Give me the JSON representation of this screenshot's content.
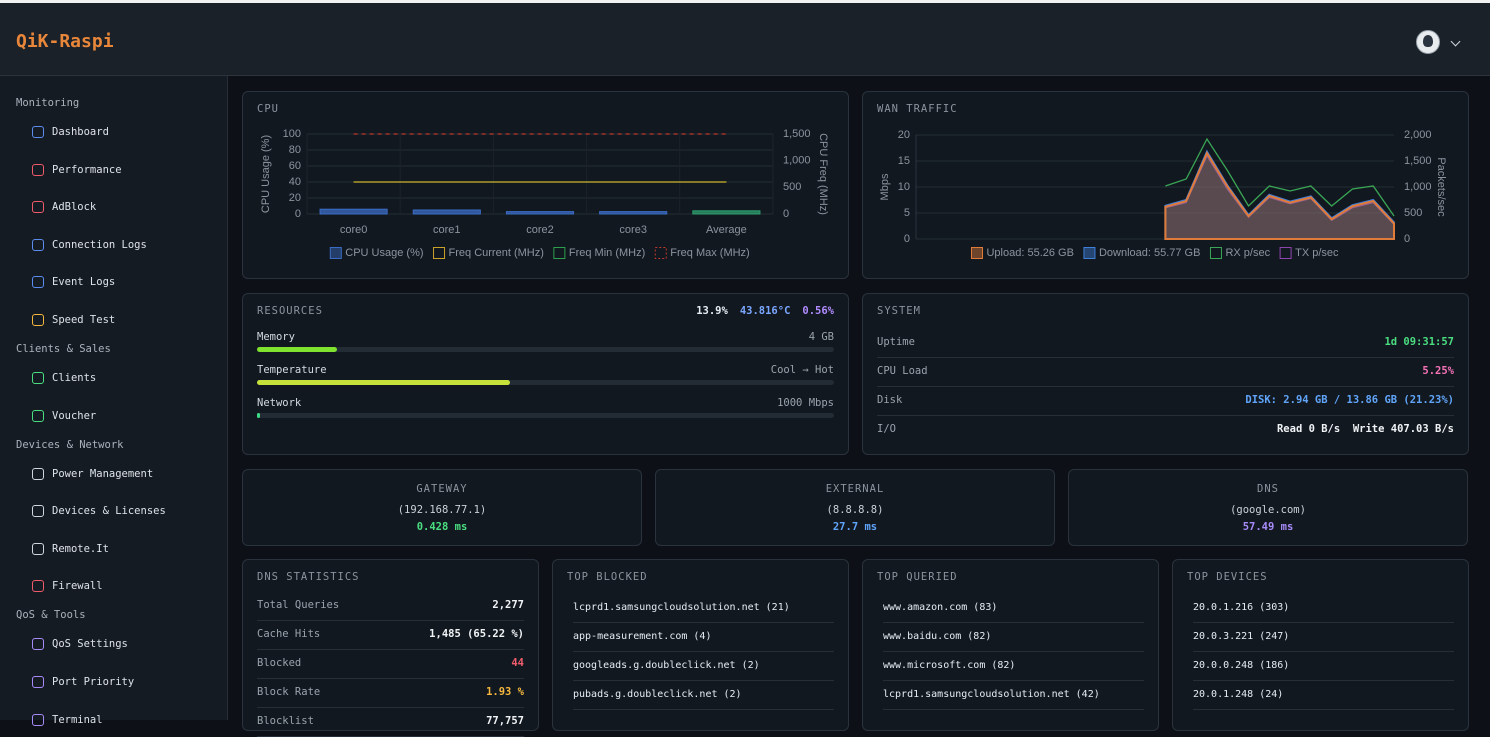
{
  "header": {
    "brand": "QiK-Raspi"
  },
  "sidebar": {
    "sections": [
      {
        "title": "Monitoring",
        "items": [
          "Dashboard",
          "Performance",
          "AdBlock",
          "Connection Logs",
          "Event Logs",
          "Speed Test"
        ]
      },
      {
        "title": "Clients & Sales",
        "items": [
          "Clients",
          "Voucher"
        ]
      },
      {
        "title": "Devices & Network",
        "items": [
          "Power Management",
          "Devices & Licenses",
          "Remote.It",
          "Firewall"
        ]
      },
      {
        "title": "QoS & Tools",
        "items": [
          "QoS Settings",
          "Port Priority",
          "Terminal"
        ]
      }
    ]
  },
  "chart_data": [
    {
      "type": "bar",
      "title": "CPU",
      "ylabel": "CPU Usage (%)",
      "y2label": "CPU Freq (MHz)",
      "categories": [
        "core0",
        "core1",
        "core2",
        "core3",
        "Average"
      ],
      "ylim": [
        0,
        100
      ],
      "yticks": [
        0,
        20,
        40,
        60,
        80,
        100
      ],
      "y2lim": [
        0,
        1500
      ],
      "y2ticks": [
        0,
        500,
        {
          "value": 1000,
          "label": "1,000"
        },
        {
          "value": 1500,
          "label": "1,500"
        }
      ],
      "grid": true,
      "series": [
        {
          "name": "CPU Usage (%)",
          "color": "#3b6cc4",
          "colors": [
            "#3b6cc4",
            "#3b6cc4",
            "#3b6cc4",
            "#3b6cc4",
            "#2e9e6e"
          ],
          "values": [
            6,
            5,
            3,
            3,
            4
          ]
        },
        {
          "name": "Freq Current (MHz)",
          "type": "line",
          "axis": "y2",
          "color": "#c9a227",
          "values": [
            600,
            600,
            600,
            600,
            600
          ]
        },
        {
          "name": "Freq Min (MHz)",
          "type": "line",
          "axis": "y2",
          "color": "#2e9e4e",
          "values": [
            600,
            600,
            600,
            600,
            600
          ]
        },
        {
          "name": "Freq Max (MHz)",
          "type": "line",
          "axis": "y2",
          "color": "#c0392b",
          "dash": true,
          "values": [
            1500,
            1500,
            1500,
            1500,
            1500
          ]
        }
      ]
    },
    {
      "type": "area",
      "title": "WAN TRAFFIC",
      "ylabel": "Mbps",
      "y2label": "Packets/sec",
      "categories": [
        null,
        null,
        null,
        null,
        null,
        null,
        null,
        null,
        null,
        null,
        null,
        null,
        null,
        null,
        null,
        null,
        null,
        null,
        null,
        null,
        null,
        null,
        null,
        null
      ],
      "ylim": [
        0,
        20
      ],
      "yticks": [
        0,
        5,
        10,
        15,
        20
      ],
      "y2lim": [
        0,
        2000
      ],
      "y2ticks": [
        0,
        500,
        {
          "value": 1000,
          "label": "1,000"
        },
        {
          "value": 1500,
          "label": "1,500"
        },
        {
          "value": 2000,
          "label": "2,000"
        }
      ],
      "grid": true,
      "series": [
        {
          "name": "Upload: 55.26 GB",
          "color": "#e07b39",
          "values": [
            null,
            null,
            null,
            null,
            null,
            null,
            null,
            null,
            null,
            null,
            null,
            null,
            6.2,
            7.3,
            16.5,
            10,
            4.4,
            8.3,
            7,
            8,
            3.8,
            6.3,
            7.3,
            3
          ]
        },
        {
          "name": "Download: 55.77 GB",
          "color": "#3d7fd9",
          "values": [
            null,
            null,
            null,
            null,
            null,
            null,
            null,
            null,
            null,
            null,
            null,
            null,
            6.4,
            7.5,
            16.8,
            10.2,
            4.6,
            8.5,
            7.2,
            8.2,
            4,
            6.5,
            7.5,
            3.2
          ]
        },
        {
          "name": "RX p/sec",
          "type": "line",
          "axis": "y2",
          "color": "#3aa655",
          "values": [
            null,
            null,
            null,
            null,
            null,
            null,
            null,
            null,
            null,
            null,
            null,
            null,
            1019,
            1154,
            1923,
            1308,
            635,
            1019,
            923,
            1019,
            635,
            962,
            1019,
            442
          ]
        },
        {
          "name": "TX p/sec",
          "type": "line",
          "axis": "y2",
          "color": "#8e44ad",
          "values": [
            null,
            null,
            null,
            null,
            null,
            null,
            null,
            null,
            null,
            null,
            null,
            null,
            600,
            700,
            1600,
            950,
            420,
            800,
            680,
            780,
            360,
            600,
            700,
            280
          ]
        }
      ]
    }
  ],
  "resources": {
    "title": "RESOURCES",
    "stats": [
      {
        "text": "13.9%",
        "color": "#e6edf3"
      },
      {
        "text": "43.816°C",
        "color": "#7aa7ff"
      },
      {
        "text": "0.56%",
        "color": "#b18cff"
      }
    ],
    "rows": [
      {
        "label": "Memory",
        "right": "4 GB",
        "value": 13.9,
        "color": "#7ee22e"
      },
      {
        "label": "Temperature",
        "right": "Cool → Hot",
        "value": 43.816,
        "color": "#c6e23a"
      },
      {
        "label": "Network",
        "right": "1000 Mbps",
        "value": 0.56,
        "color": "#3ddc84"
      }
    ]
  },
  "system": {
    "title": "SYSTEM",
    "rows": [
      {
        "label": "Uptime",
        "value": "1d 09:31:57",
        "color": "#4ade80"
      },
      {
        "label": "CPU Load",
        "value": "5.25%",
        "color": "#f472b6"
      },
      {
        "label": "Disk",
        "value": "DISK: 2.94 GB / 13.86 GB (21.23%)",
        "color": "#60a5fa"
      },
      {
        "label": "I/O",
        "value": "Read 0 B/s  Write 407.03 B/s",
        "color": "#f0f3f6"
      }
    ]
  },
  "pings": [
    {
      "title": "GATEWAY",
      "host": "(192.168.77.1)",
      "latency": "0.428 ms",
      "color": "#4ade80"
    },
    {
      "title": "EXTERNAL",
      "host": "(8.8.8.8)",
      "latency": "27.7 ms",
      "color": "#60a5fa"
    },
    {
      "title": "DNS",
      "host": "(google.com)",
      "latency": "57.49 ms",
      "color": "#a78bfa"
    }
  ],
  "dns_stats": {
    "title": "DNS STATISTICS",
    "rows": [
      {
        "label": "Total Queries",
        "value": "2,277",
        "color": "#f0f3f6"
      },
      {
        "label": "Cache Hits",
        "value": "1,485 (65.22 %)",
        "color": "#f0f3f6"
      },
      {
        "label": "Blocked",
        "value": "44",
        "color": "#f05d6c"
      },
      {
        "label": "Block Rate",
        "value": "1.93 %",
        "color": "#f5b83d"
      },
      {
        "label": "Blocklist",
        "value": "77,757",
        "color": "#f0f3f6"
      }
    ]
  },
  "lists": [
    {
      "title": "TOP BLOCKED",
      "items": [
        "lcprd1.samsungcloudsolution.net (21)",
        "app-measurement.com (4)",
        "googleads.g.doubleclick.net (2)",
        "pubads.g.doubleclick.net (2)"
      ]
    },
    {
      "title": "TOP QUERIED",
      "items": [
        "www.amazon.com (83)",
        "www.baidu.com (82)",
        "www.microsoft.com (82)",
        "lcprd1.samsungcloudsolution.net (42)"
      ]
    },
    {
      "title": "TOP DEVICES",
      "items": [
        "20.0.1.216 (303)",
        "20.0.3.221 (247)",
        "20.0.0.248 (186)",
        "20.0.1.248 (24)"
      ]
    }
  ]
}
